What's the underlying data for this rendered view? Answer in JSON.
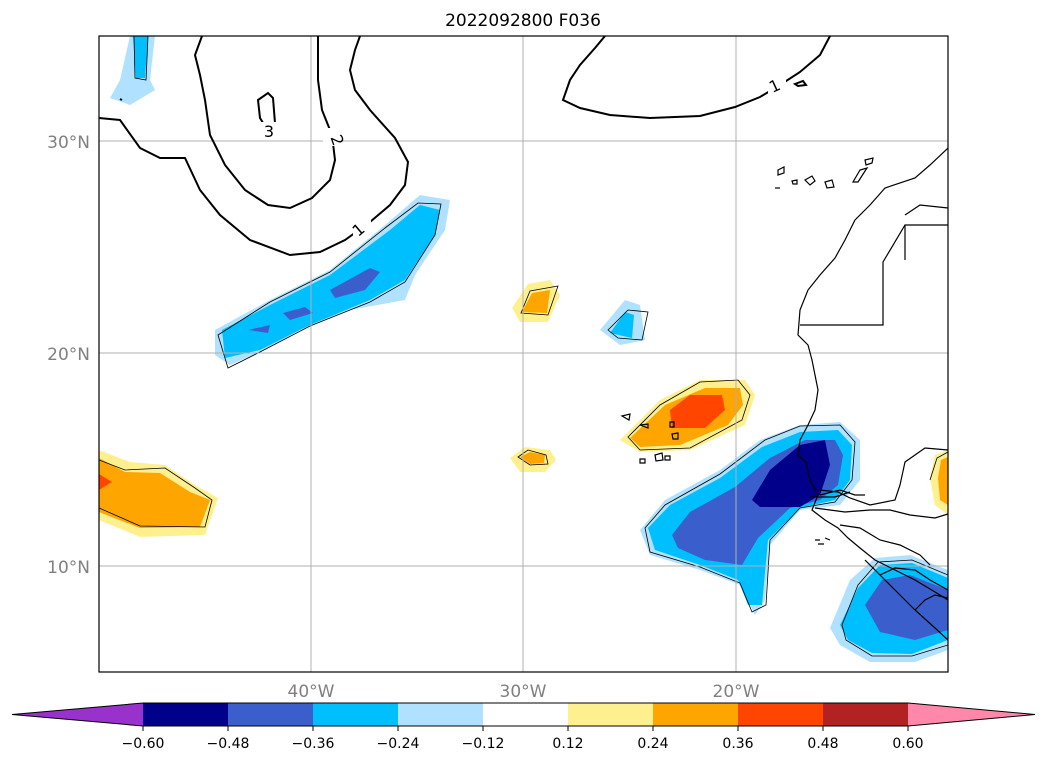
{
  "title": "2022092800 F036",
  "map": {
    "lat_labels": [
      "30°N",
      "20°N",
      "10°N"
    ],
    "lon_labels": [
      "40°W",
      "30°W",
      "20°W"
    ],
    "contour_labels": [
      "3",
      "2",
      "1",
      "1"
    ],
    "grid_color": "#b0b0b0"
  },
  "colorbar": {
    "ticks": [
      "−0.60",
      "−0.48",
      "−0.36",
      "−0.24",
      "−0.12",
      "0.12",
      "0.24",
      "0.36",
      "0.48",
      "0.60"
    ],
    "colors": [
      "#9932cc",
      "#00008b",
      "#3a5fcd",
      "#00bfff",
      "#b0e2ff",
      "#ffffff",
      "#fff08f",
      "#ffa500",
      "#ff4500",
      "#b22222",
      "#ff88aa"
    ]
  }
}
